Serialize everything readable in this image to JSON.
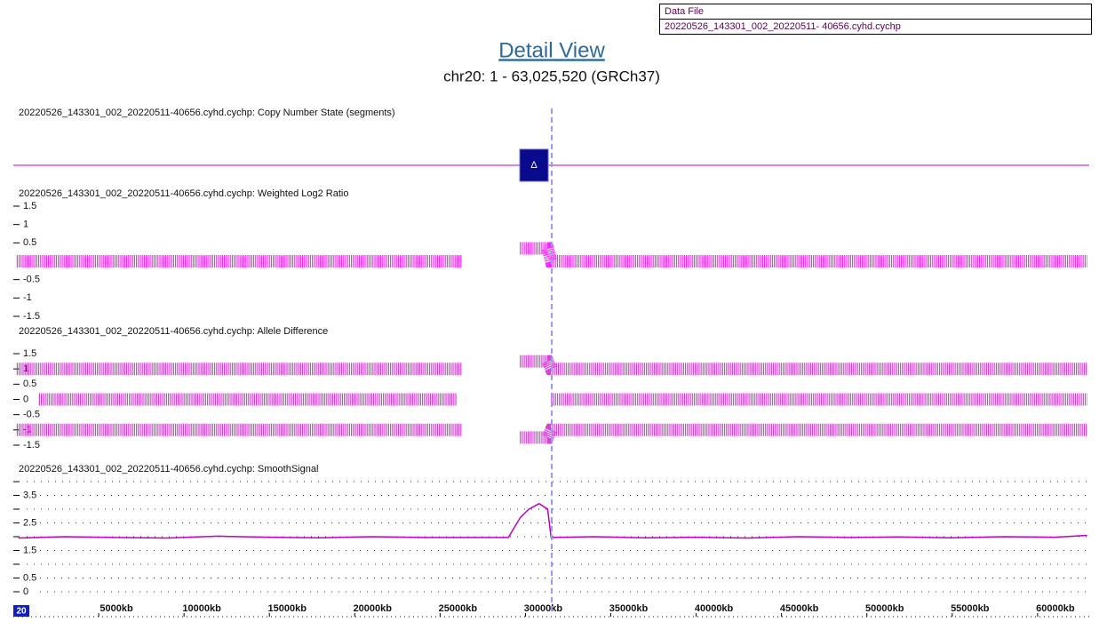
{
  "data_file": {
    "label": "Data File",
    "value": "20220526_143301_002_20220511- 40656.cyhd.cychp"
  },
  "title": "Detail View",
  "subtitle": "chr20: 1 - 63,025,520 (GRCh37)",
  "chromosome": "20",
  "xlim": [
    0,
    63025520
  ],
  "xticks": [
    {
      "value": 5000000,
      "label": "5000kb"
    },
    {
      "value": 10000000,
      "label": "10000kb"
    },
    {
      "value": 15000000,
      "label": "15000kb"
    },
    {
      "value": 20000000,
      "label": "20000kb"
    },
    {
      "value": 25000000,
      "label": "25000kb"
    },
    {
      "value": 30000000,
      "label": "30000kb"
    },
    {
      "value": 35000000,
      "label": "35000kb"
    },
    {
      "value": 40000000,
      "label": "40000kb"
    },
    {
      "value": 45000000,
      "label": "45000kb"
    },
    {
      "value": 50000000,
      "label": "50000kb"
    },
    {
      "value": 55000000,
      "label": "55000kb"
    },
    {
      "value": 60000000,
      "label": "60000kb"
    }
  ],
  "chart_data": [
    {
      "type": "segments",
      "title": "20220526_143301_002_20220511-40656.cyhd.cychp: Copy Number State (segments)",
      "line_color": "#c000c0",
      "color": "#0a0a8c",
      "segments": [
        {
          "start": 29670000,
          "end": 31330000,
          "symbol": "Δ"
        }
      ]
    },
    {
      "type": "scatter",
      "title": "20220526_143301_002_20220511-40656.cyhd.cychp: Weighted Log2 Ratio",
      "ylim": [
        -1.5,
        1.5
      ],
      "yticks": [
        1.5,
        1,
        0.5,
        -0.5,
        -1,
        -1.5
      ],
      "series": [
        {
          "color": "#ff00ff",
          "x": [
            200000,
            26300000,
            28000000,
            29670000,
            31300000,
            31500000,
            62900000
          ],
          "values": [
            0,
            0,
            null,
            0.35,
            0.35,
            0,
            0
          ]
        }
      ]
    },
    {
      "type": "scatter",
      "title": "20220526_143301_002_20220511-40656.cyhd.cychp: Allele Difference",
      "ylim": [
        -1.5,
        1.5
      ],
      "yticks": [
        1.5,
        1,
        0.5,
        0,
        -0.5,
        -1,
        -1.5
      ],
      "series": [
        {
          "color": "#d020d0",
          "x": [
            200000,
            26300000,
            28000000,
            29670000,
            31300000,
            31500000,
            62900000
          ],
          "values": [
            1,
            1,
            null,
            1.25,
            1.25,
            1,
            1
          ]
        },
        {
          "color": "#d020d0",
          "x": [
            1500000,
            26000000,
            28000000,
            31500000,
            62900000
          ],
          "values": [
            0,
            0,
            null,
            0,
            0
          ]
        },
        {
          "color": "#d020d0",
          "x": [
            200000,
            26300000,
            28000000,
            29670000,
            31300000,
            31500000,
            62900000
          ],
          "values": [
            -1,
            -1,
            null,
            -1.25,
            -1.25,
            -1,
            -1
          ]
        }
      ]
    },
    {
      "type": "line",
      "title": "20220526_143301_002_20220511-40656.cyhd.cychp: SmoothSignal",
      "ylim": [
        0,
        4
      ],
      "yticks": [
        3.5,
        2.5,
        1.5,
        0.5,
        0
      ],
      "minor_yticks": [
        4,
        3,
        2,
        1
      ],
      "series": [
        {
          "color": "#c000c0",
          "x": [
            300000,
            3000000,
            6000000,
            9000000,
            12000000,
            15000000,
            18000000,
            21000000,
            24000000,
            26300000,
            29000000,
            29700000,
            30200000,
            30800000,
            31300000,
            31500000,
            34000000,
            37000000,
            40000000,
            43000000,
            46000000,
            49000000,
            52000000,
            55000000,
            58000000,
            61000000,
            62900000
          ],
          "values": [
            1.95,
            2.0,
            1.97,
            1.95,
            2.02,
            1.98,
            1.96,
            2.0,
            1.97,
            1.97,
            1.97,
            2.7,
            3.0,
            3.2,
            3.0,
            1.97,
            2.0,
            1.96,
            1.98,
            1.95,
            2.0,
            1.97,
            1.99,
            1.96,
            2.0,
            1.98,
            2.05
          ]
        }
      ]
    }
  ]
}
